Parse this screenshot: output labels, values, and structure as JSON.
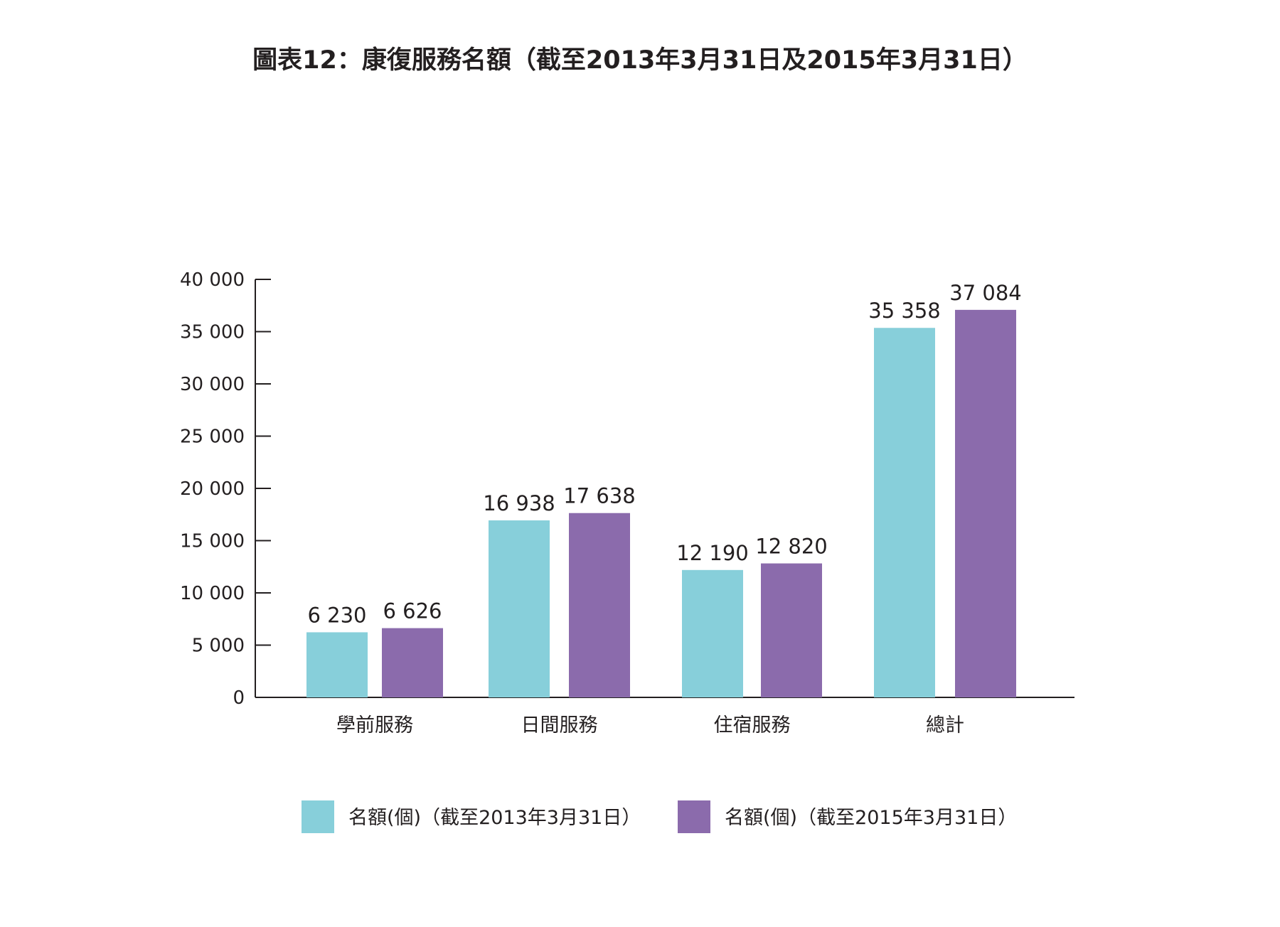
{
  "chart_data": {
    "type": "bar",
    "title": "圖表12：康復服務名額（截至2013年3月31日及2015年3月31日）",
    "xlabel": "",
    "ylabel": "",
    "ylim": [
      0,
      40000
    ],
    "yticks": [
      0,
      5000,
      10000,
      15000,
      20000,
      25000,
      30000,
      35000,
      40000
    ],
    "ytick_labels": [
      "0",
      "5 000",
      "10 000",
      "15 000",
      "20 000",
      "25 000",
      "30 000",
      "35 000",
      "40 000"
    ],
    "grid": false,
    "legend_position": "bottom",
    "categories": [
      "學前服務",
      "日間服務",
      "住宿服務",
      "總計"
    ],
    "series": [
      {
        "name": "名額(個)（截至2013年3月31日）",
        "color": "#87CFDA",
        "values": [
          6230,
          16938,
          12190,
          35358
        ],
        "labels": [
          "6 230",
          "16 938",
          "12 190",
          "35 358"
        ]
      },
      {
        "name": "名額(個)（截至2015年3月31日）",
        "color": "#8B6BAC",
        "values": [
          6626,
          17638,
          12820,
          37084
        ],
        "labels": [
          "6 626",
          "17 638",
          "12 820",
          "37 084"
        ]
      }
    ]
  }
}
